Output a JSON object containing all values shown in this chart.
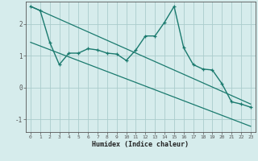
{
  "title": "",
  "xlabel": "Humidex (Indice chaleur)",
  "ylabel": "",
  "xlim": [
    -0.5,
    23.5
  ],
  "ylim": [
    -1.4,
    2.7
  ],
  "yticks": [
    -1,
    0,
    1,
    2
  ],
  "xticks": [
    0,
    1,
    2,
    3,
    4,
    5,
    6,
    7,
    8,
    9,
    10,
    11,
    12,
    13,
    14,
    15,
    16,
    17,
    18,
    19,
    20,
    21,
    22,
    23
  ],
  "bg_color": "#d6ecec",
  "grid_color": "#aacccc",
  "line_color": "#1a7a6e",
  "line1_x": [
    0,
    1,
    2,
    3,
    4,
    5,
    6,
    7,
    8,
    9,
    10,
    11,
    12,
    13,
    14,
    15,
    16,
    17,
    18,
    19,
    20,
    21,
    22,
    23
  ],
  "line1_y": [
    2.55,
    2.42,
    1.42,
    0.72,
    1.08,
    1.08,
    1.22,
    1.18,
    1.08,
    1.05,
    0.85,
    1.18,
    1.62,
    1.62,
    2.05,
    2.55,
    1.25,
    0.72,
    0.58,
    0.55,
    0.12,
    -0.45,
    -0.52,
    -0.62
  ],
  "line2_x": [
    0,
    23
  ],
  "line2_y": [
    2.55,
    -0.52
  ],
  "line3_x": [
    0,
    23
  ],
  "line3_y": [
    1.42,
    -1.22
  ]
}
